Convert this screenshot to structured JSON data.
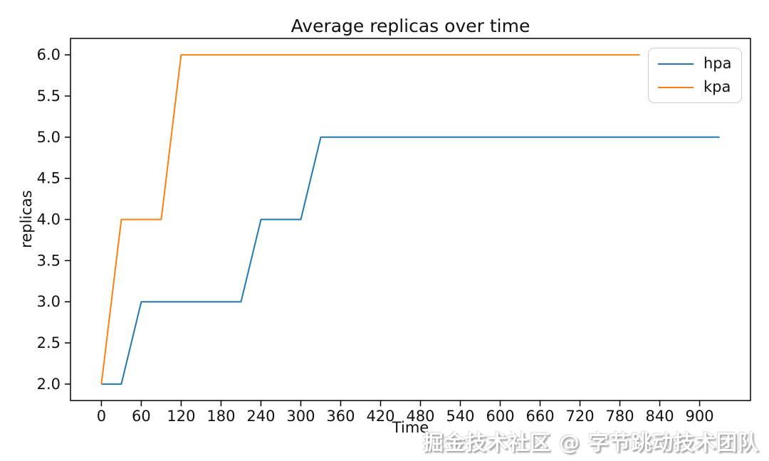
{
  "chart_data": {
    "type": "line",
    "title": "Average replicas over time",
    "xlabel": "Time",
    "ylabel": "replicas",
    "xlim": [
      -46.5,
      976.5
    ],
    "ylim": [
      1.8,
      6.2
    ],
    "grid": false,
    "legend_position": "upper right",
    "x_tick_labels": [
      "0",
      "60",
      "120",
      "180",
      "240",
      "300",
      "360",
      "420",
      "480",
      "540",
      "600",
      "660",
      "720",
      "780",
      "840",
      "900"
    ],
    "y_tick_labels": [
      "2.0",
      "2.5",
      "3.0",
      "3.5",
      "4.0",
      "4.5",
      "5.0",
      "5.5",
      "6.0"
    ],
    "axis_color": "#000000",
    "series": [
      {
        "name": "hpa",
        "color": "#1f77b4",
        "points": [
          [
            0,
            2
          ],
          [
            30,
            2
          ],
          [
            60,
            3
          ],
          [
            210,
            3
          ],
          [
            240,
            4
          ],
          [
            300,
            4
          ],
          [
            330,
            5
          ],
          [
            930,
            5
          ]
        ]
      },
      {
        "name": "kpa",
        "color": "#ff7f0e",
        "points": [
          [
            0,
            2
          ],
          [
            30,
            4
          ],
          [
            90,
            4
          ],
          [
            120,
            6
          ],
          [
            810,
            6
          ]
        ]
      }
    ]
  },
  "watermark": {
    "text": "掘金技术社区 @ 字节跳动技术团队"
  }
}
